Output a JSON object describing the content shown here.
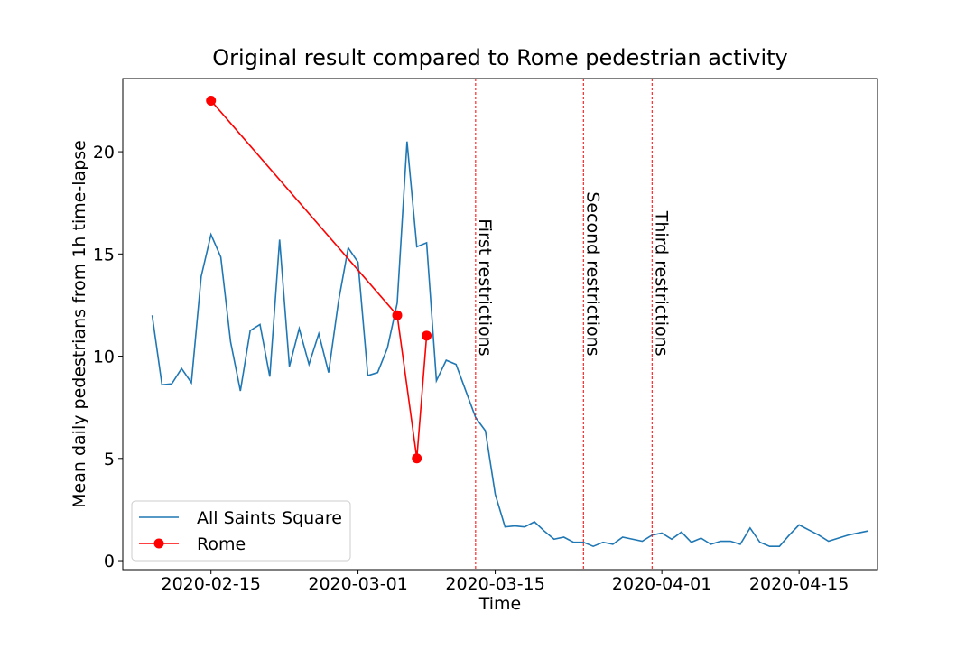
{
  "chart_data": {
    "type": "line",
    "title": "Original result compared to Rome pedestrian activity",
    "xlabel": "Time",
    "ylabel": "Mean daily pedestrians from 1h time-lapse",
    "xlim": [
      "2020-02-06",
      "2020-04-23"
    ],
    "ylim": [
      -0.44,
      23.58
    ],
    "xticks": [
      "2020-02-15",
      "2020-03-01",
      "2020-03-15",
      "2020-04-01",
      "2020-04-15"
    ],
    "yticks": [
      0,
      5,
      10,
      15,
      20
    ],
    "legend": "lower left",
    "series": [
      {
        "name": "All Saints Square",
        "color": "#1f77b4",
        "marker": false,
        "x": [
          "2020-02-09",
          "2020-02-10",
          "2020-02-11",
          "2020-02-12",
          "2020-02-13",
          "2020-02-14",
          "2020-02-15",
          "2020-02-16",
          "2020-02-17",
          "2020-02-18",
          "2020-02-19",
          "2020-02-20",
          "2020-02-21",
          "2020-02-22",
          "2020-02-23",
          "2020-02-24",
          "2020-02-25",
          "2020-02-26",
          "2020-02-27",
          "2020-02-28",
          "2020-02-29",
          "2020-03-01",
          "2020-03-02",
          "2020-03-03",
          "2020-03-04",
          "2020-03-05",
          "2020-03-06",
          "2020-03-07",
          "2020-03-08",
          "2020-03-09",
          "2020-03-10",
          "2020-03-11",
          "2020-03-12",
          "2020-03-13",
          "2020-03-14",
          "2020-03-15",
          "2020-03-16",
          "2020-03-17",
          "2020-03-18",
          "2020-03-19",
          "2020-03-20",
          "2020-03-21",
          "2020-03-22",
          "2020-03-23",
          "2020-03-24",
          "2020-03-25",
          "2020-03-26",
          "2020-03-27",
          "2020-03-28",
          "2020-03-29",
          "2020-03-30",
          "2020-03-31",
          "2020-04-01",
          "2020-04-02",
          "2020-04-03",
          "2020-04-04",
          "2020-04-05",
          "2020-04-06",
          "2020-04-07",
          "2020-04-08",
          "2020-04-09",
          "2020-04-10",
          "2020-04-11",
          "2020-04-12",
          "2020-04-13",
          "2020-04-14",
          "2020-04-15",
          "2020-04-16",
          "2020-04-17",
          "2020-04-18",
          "2020-04-19",
          "2020-04-20",
          "2020-04-21",
          "2020-04-22"
        ],
        "values": [
          12.0,
          8.6,
          8.65,
          9.4,
          8.7,
          13.9,
          15.95,
          14.85,
          10.7,
          8.3,
          11.25,
          11.55,
          9.0,
          15.7,
          9.5,
          11.35,
          9.6,
          11.1,
          9.2,
          12.65,
          15.3,
          14.6,
          9.05,
          9.2,
          10.4,
          12.6,
          20.5,
          15.35,
          15.55,
          8.8,
          9.8,
          9.6,
          8.3,
          7.0,
          6.35,
          3.25,
          1.65,
          1.7,
          1.65,
          1.9,
          1.45,
          1.05,
          1.15,
          0.9,
          0.9,
          0.7,
          0.9,
          0.8,
          1.15,
          1.05,
          0.95,
          1.25,
          1.35,
          1.05,
          1.4,
          0.9,
          1.1,
          0.8,
          0.95,
          0.95,
          0.8,
          1.6,
          0.9,
          0.7,
          0.7,
          1.25,
          1.75,
          1.5,
          1.25,
          0.95,
          1.1,
          1.25,
          1.35,
          1.45
        ]
      },
      {
        "name": "Rome",
        "color": "#ff0000",
        "marker": true,
        "x": [
          "2020-02-15",
          "2020-03-05",
          "2020-03-07",
          "2020-03-08"
        ],
        "values": [
          22.5,
          12.0,
          5.0,
          11.0
        ]
      }
    ],
    "vlines": [
      {
        "x": "2020-03-13",
        "color": "#ff0000",
        "text": "First restrictions",
        "y": 10
      },
      {
        "x": "2020-03-24",
        "color": "#ff0000",
        "text": "Second restrictions",
        "y": 10
      },
      {
        "x": "2020-03-31",
        "color": "#ff0000",
        "text": "Third restrictions",
        "y": 10
      }
    ]
  }
}
